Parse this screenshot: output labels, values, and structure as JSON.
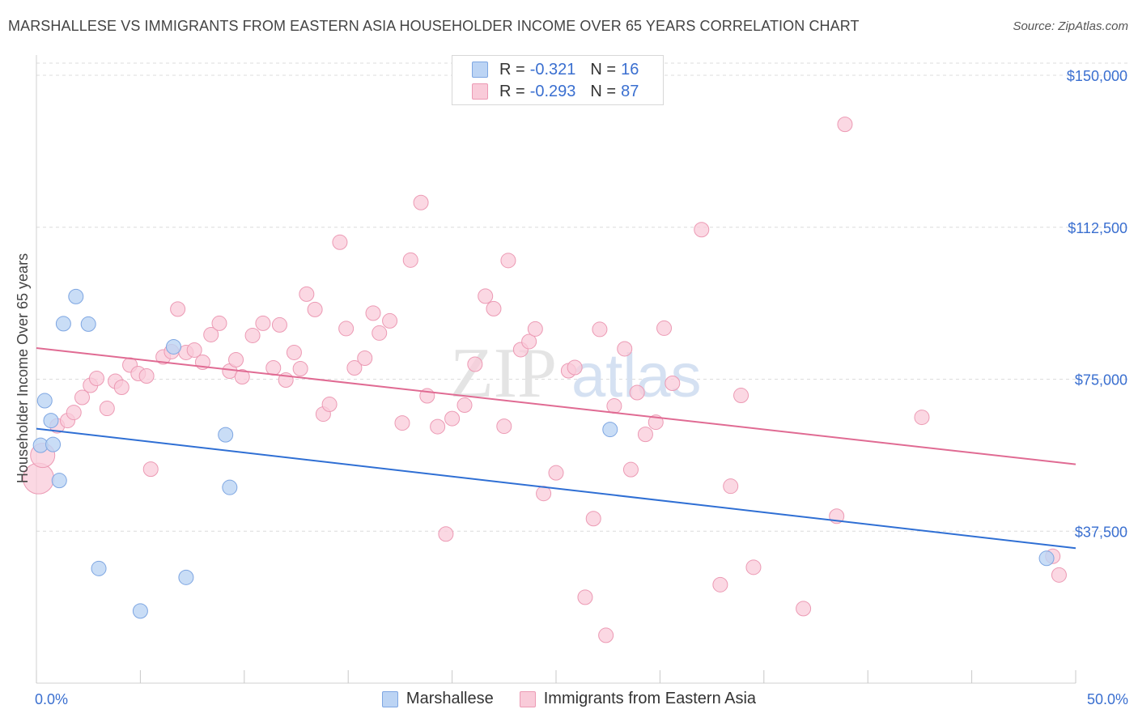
{
  "title": "MARSHALLESE VS IMMIGRANTS FROM EASTERN ASIA HOUSEHOLDER INCOME OVER 65 YEARS CORRELATION CHART",
  "source": "Source: ZipAtlas.com",
  "watermark": {
    "zip": "ZIP",
    "atlas": "atlas"
  },
  "legend": {
    "rows": [
      {
        "r_label": "R =",
        "r_value": "-0.321",
        "n_label": "N =",
        "n_value": "16"
      },
      {
        "r_label": "R =",
        "r_value": "-0.293",
        "n_label": "N =",
        "n_value": "87"
      }
    ]
  },
  "bottom_legend": [
    "Marshallese",
    "Immigrants from Eastern Asia"
  ],
  "colors": {
    "blue_fill": "#bcd4f4",
    "blue_stroke": "#7ea6e2",
    "blue_line": "#2f6fd4",
    "pink_fill": "#f9cbd9",
    "pink_stroke": "#ec9ab4",
    "pink_line": "#e06b93",
    "tick_label": "#3a6fd0",
    "grid": "#dcdcdc"
  },
  "chart_data": {
    "type": "scatter",
    "title": "MARSHALLESE VS IMMIGRANTS FROM EASTERN ASIA HOUSEHOLDER INCOME OVER 65 YEARS CORRELATION CHART",
    "xlabel": "",
    "ylabel": "Householder Income Over 65 years",
    "xlim": [
      0,
      50
    ],
    "ylim": [
      0,
      153000
    ],
    "x_tick_labels": [
      "0.0%",
      "50.0%"
    ],
    "y_ticks": [
      37500,
      75000,
      112500,
      150000
    ],
    "y_tick_labels": [
      "$37,500",
      "$75,000",
      "$112,500",
      "$150,000"
    ],
    "grid": true,
    "series": [
      {
        "name": "Marshallese",
        "points": [
          [
            0.2,
            58700
          ],
          [
            0.4,
            69700
          ],
          [
            0.7,
            64800
          ],
          [
            0.8,
            58900
          ],
          [
            1.1,
            50000
          ],
          [
            1.3,
            88700
          ],
          [
            1.9,
            95400
          ],
          [
            2.5,
            88600
          ],
          [
            3.0,
            28300
          ],
          [
            5.0,
            17800
          ],
          [
            6.6,
            83000
          ],
          [
            7.2,
            26100
          ],
          [
            9.1,
            61300
          ],
          [
            9.3,
            48300
          ],
          [
            27.6,
            62600
          ],
          [
            48.6,
            30800
          ]
        ],
        "trend": {
          "x": [
            0,
            50
          ],
          "y": [
            62800,
            33300
          ]
        }
      },
      {
        "name": "Immigrants from Eastern Asia",
        "points": [
          [
            0.1,
            50500
          ],
          [
            0.3,
            56200
          ],
          [
            1.0,
            63500
          ],
          [
            1.5,
            64800
          ],
          [
            1.8,
            66800
          ],
          [
            2.2,
            70500
          ],
          [
            2.6,
            73500
          ],
          [
            2.9,
            75200
          ],
          [
            3.4,
            67800
          ],
          [
            3.8,
            74500
          ],
          [
            4.1,
            73000
          ],
          [
            4.5,
            78500
          ],
          [
            4.9,
            76400
          ],
          [
            5.3,
            75800
          ],
          [
            5.5,
            52800
          ],
          [
            6.1,
            80500
          ],
          [
            6.5,
            81800
          ],
          [
            6.8,
            92300
          ],
          [
            7.2,
            81600
          ],
          [
            7.6,
            82200
          ],
          [
            8.0,
            79200
          ],
          [
            8.4,
            86000
          ],
          [
            8.8,
            88800
          ],
          [
            9.3,
            77000
          ],
          [
            9.6,
            79800
          ],
          [
            9.9,
            75600
          ],
          [
            10.4,
            85800
          ],
          [
            10.9,
            88800
          ],
          [
            11.4,
            77800
          ],
          [
            11.7,
            88400
          ],
          [
            12.0,
            74800
          ],
          [
            12.4,
            81600
          ],
          [
            12.7,
            77600
          ],
          [
            13.0,
            96000
          ],
          [
            13.4,
            92200
          ],
          [
            13.8,
            66400
          ],
          [
            14.1,
            68800
          ],
          [
            14.6,
            108800
          ],
          [
            14.9,
            87500
          ],
          [
            15.3,
            77800
          ],
          [
            15.8,
            80200
          ],
          [
            16.2,
            91300
          ],
          [
            16.5,
            86400
          ],
          [
            17.0,
            89400
          ],
          [
            17.6,
            64200
          ],
          [
            18.0,
            104400
          ],
          [
            18.5,
            118600
          ],
          [
            18.8,
            70900
          ],
          [
            19.3,
            63300
          ],
          [
            19.7,
            36800
          ],
          [
            20.0,
            65300
          ],
          [
            20.6,
            68600
          ],
          [
            21.1,
            78700
          ],
          [
            21.6,
            95500
          ],
          [
            22.0,
            92400
          ],
          [
            22.5,
            63400
          ],
          [
            22.7,
            104300
          ],
          [
            23.3,
            82300
          ],
          [
            23.7,
            84300
          ],
          [
            24.0,
            87400
          ],
          [
            24.4,
            46800
          ],
          [
            25.0,
            51900
          ],
          [
            25.6,
            77100
          ],
          [
            25.9,
            77900
          ],
          [
            26.4,
            21200
          ],
          [
            26.8,
            40600
          ],
          [
            27.1,
            87300
          ],
          [
            27.4,
            11800
          ],
          [
            27.8,
            68400
          ],
          [
            28.3,
            82500
          ],
          [
            28.6,
            52700
          ],
          [
            28.9,
            71700
          ],
          [
            29.3,
            61400
          ],
          [
            29.8,
            64400
          ],
          [
            30.2,
            87600
          ],
          [
            30.6,
            74000
          ],
          [
            32.0,
            111900
          ],
          [
            32.9,
            24300
          ],
          [
            33.4,
            48600
          ],
          [
            33.9,
            71000
          ],
          [
            34.5,
            28600
          ],
          [
            36.9,
            18400
          ],
          [
            38.5,
            41200
          ],
          [
            38.9,
            137900
          ],
          [
            42.6,
            65600
          ],
          [
            48.9,
            31300
          ],
          [
            49.2,
            26700
          ]
        ],
        "trend": {
          "x": [
            0,
            50
          ],
          "y": [
            82700,
            54000
          ]
        }
      }
    ]
  }
}
